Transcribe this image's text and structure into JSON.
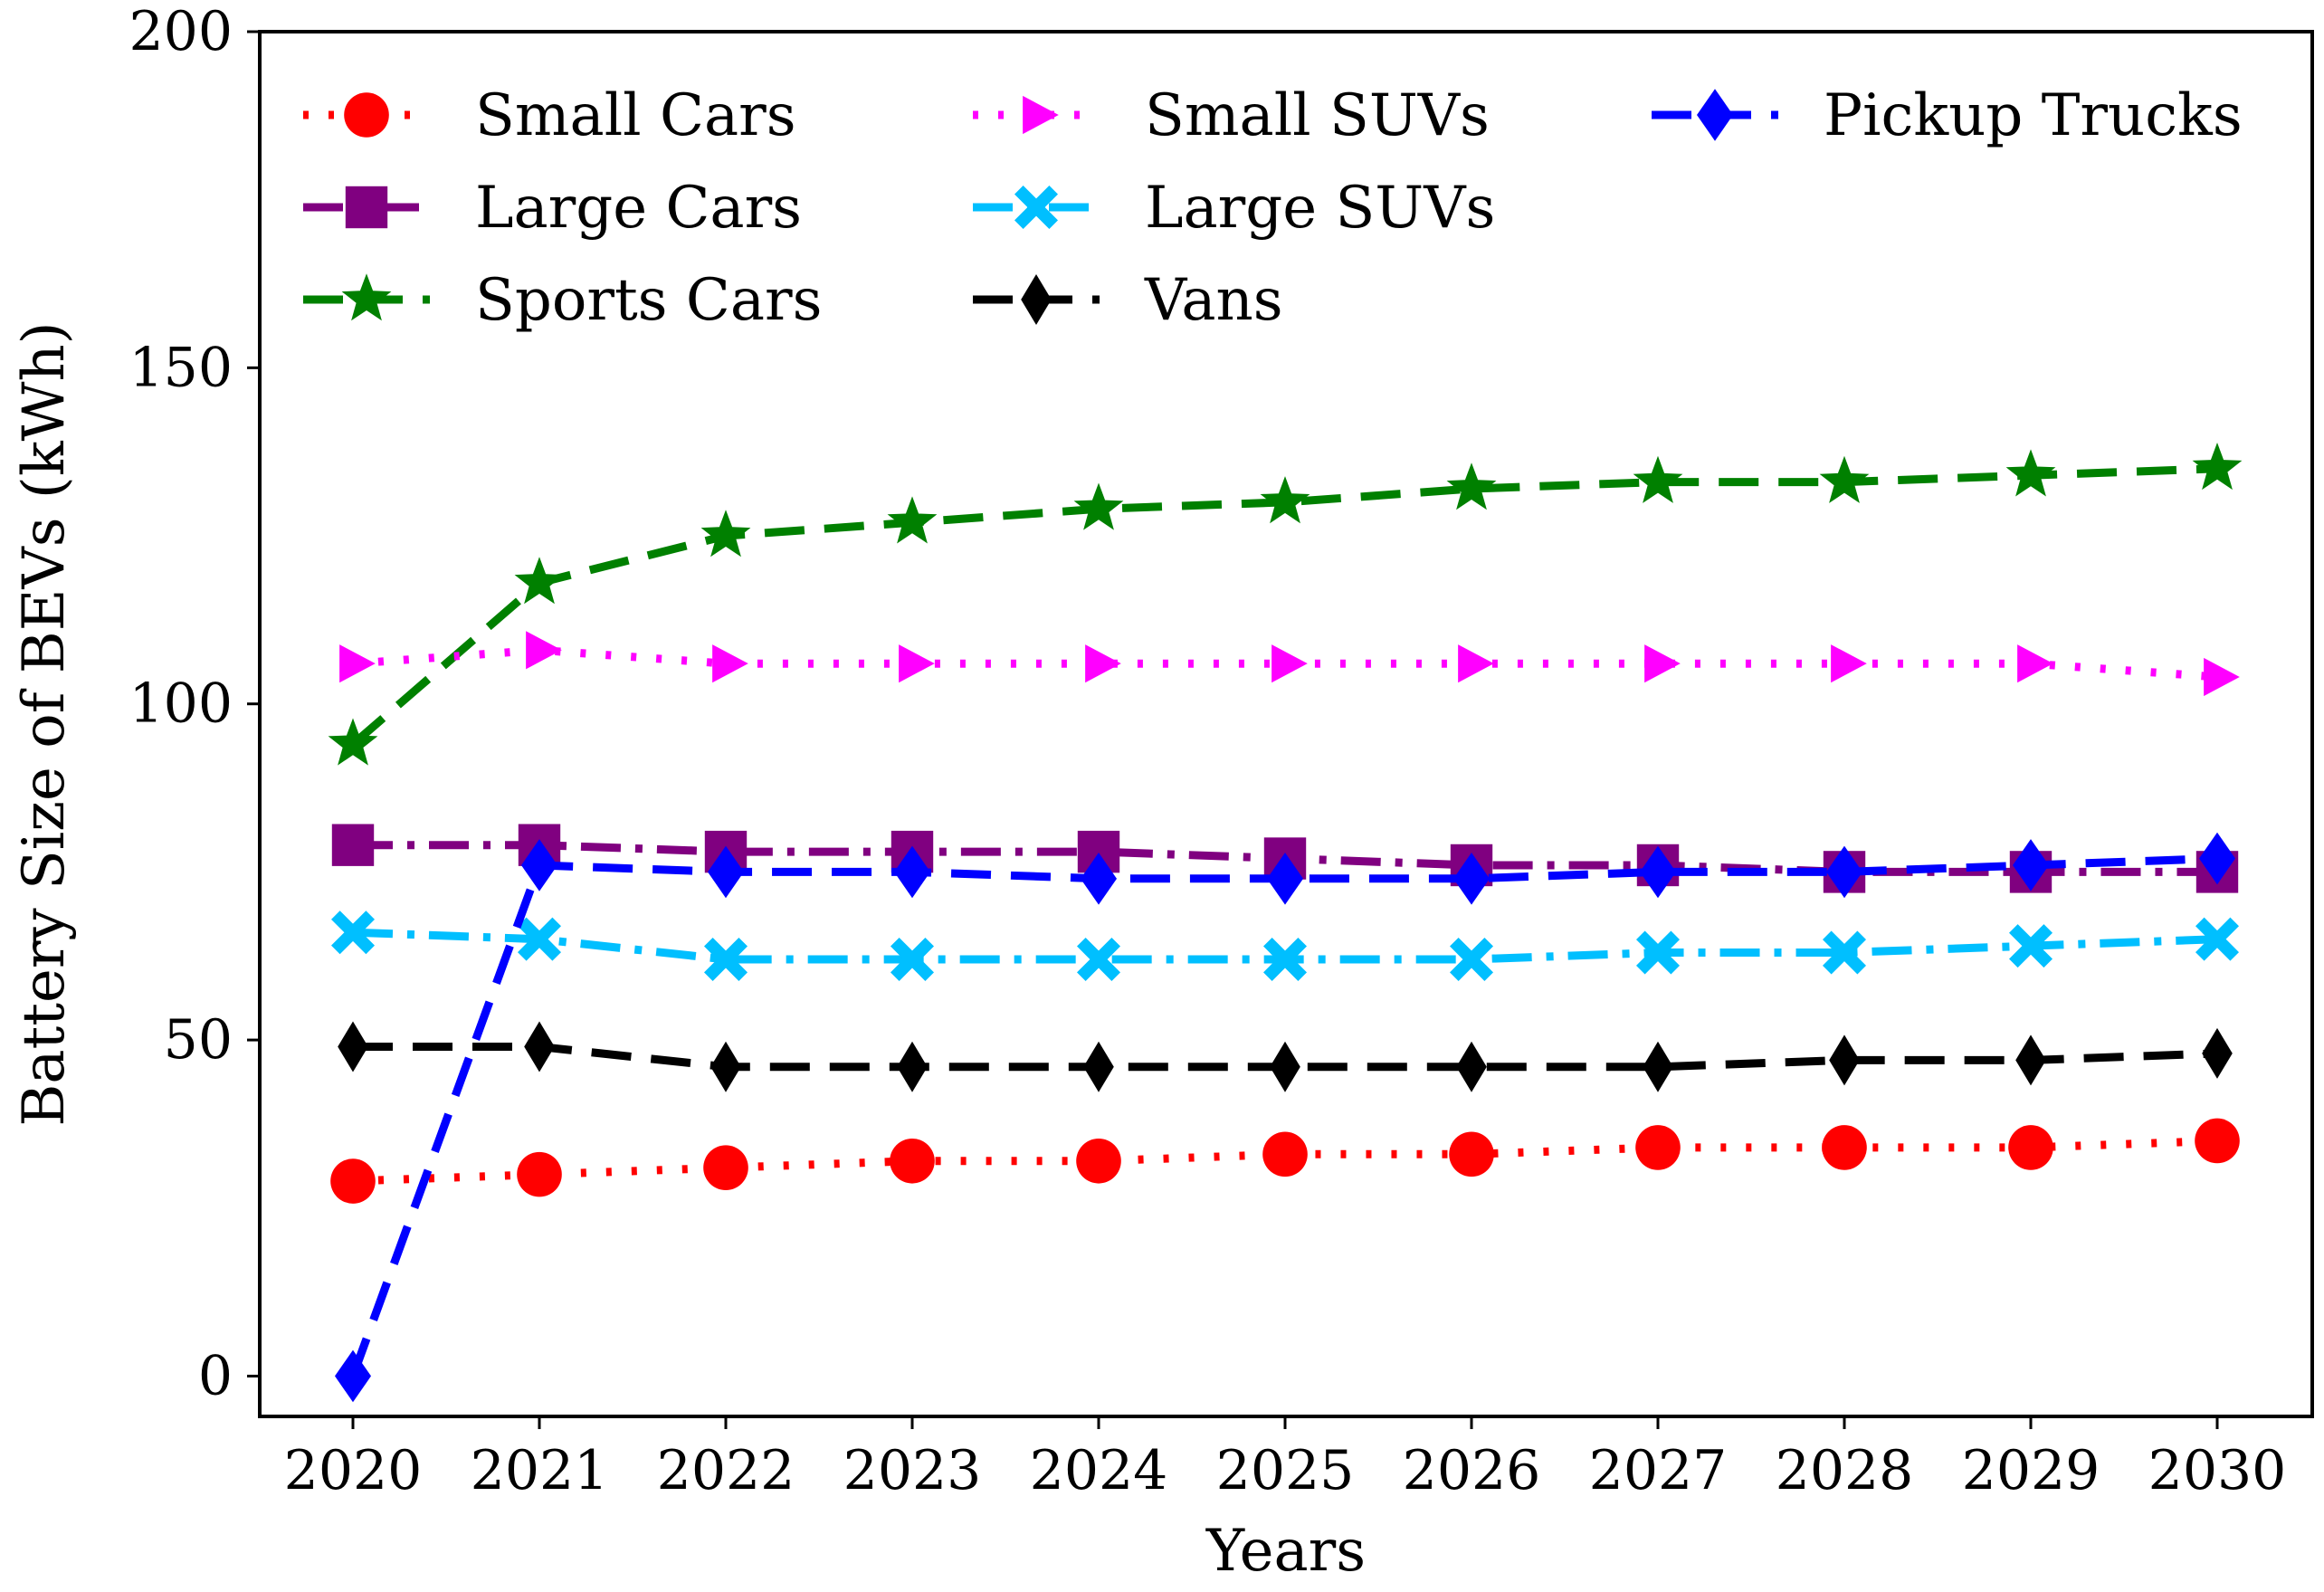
{
  "chart_data": {
    "type": "line",
    "title": "",
    "xlabel": "Years",
    "ylabel": "Battery Size of BEVs (kWh)",
    "x": [
      2020,
      2021,
      2022,
      2023,
      2024,
      2025,
      2026,
      2027,
      2028,
      2029,
      2030
    ],
    "x_tick_labels": [
      "2020",
      "2021",
      "2022",
      "2023",
      "2024",
      "2025",
      "2026",
      "2027",
      "2028",
      "2029",
      "2030"
    ],
    "ylim": [
      -6,
      200
    ],
    "y_ticks": [
      0,
      50,
      100,
      150,
      200
    ],
    "y_tick_labels": [
      "0",
      "50",
      "100",
      "150",
      "200"
    ],
    "grid": false,
    "legend_position": "top",
    "series": [
      {
        "name": "Small Cars",
        "color": "#ff0000",
        "marker": "circle",
        "linestyle": "dotted",
        "values": [
          29,
          30,
          31,
          32,
          32,
          33,
          33,
          34,
          34,
          34,
          35
        ]
      },
      {
        "name": "Large Cars",
        "color": "#800080",
        "marker": "square",
        "linestyle": "dashdot",
        "values": [
          79,
          79,
          78,
          78,
          78,
          77,
          76,
          76,
          75,
          75,
          75
        ]
      },
      {
        "name": "Sports Cars",
        "color": "#008000",
        "marker": "star",
        "linestyle": "dashed",
        "values": [
          94,
          118,
          125,
          127,
          129,
          130,
          132,
          133,
          133,
          134,
          135
        ]
      },
      {
        "name": "Small SUVs",
        "color": "#ff00ff",
        "marker": "triangle-right",
        "linestyle": "dotted",
        "values": [
          106,
          108,
          106,
          106,
          106,
          106,
          106,
          106,
          106,
          106,
          104
        ]
      },
      {
        "name": "Large SUVs",
        "color": "#00bfff",
        "marker": "x-filled",
        "linestyle": "dashdot",
        "values": [
          66,
          65,
          62,
          62,
          62,
          62,
          62,
          63,
          63,
          64,
          65
        ]
      },
      {
        "name": "Vans",
        "color": "#000000",
        "marker": "thin-diamond",
        "linestyle": "dashed",
        "values": [
          49,
          49,
          46,
          46,
          46,
          46,
          46,
          46,
          47,
          47,
          48
        ]
      },
      {
        "name": "Pickup Trucks",
        "color": "#0000ff",
        "marker": "diamond",
        "linestyle": "dashed",
        "values": [
          0,
          76,
          75,
          75,
          74,
          74,
          74,
          75,
          75,
          76,
          77
        ]
      }
    ]
  }
}
